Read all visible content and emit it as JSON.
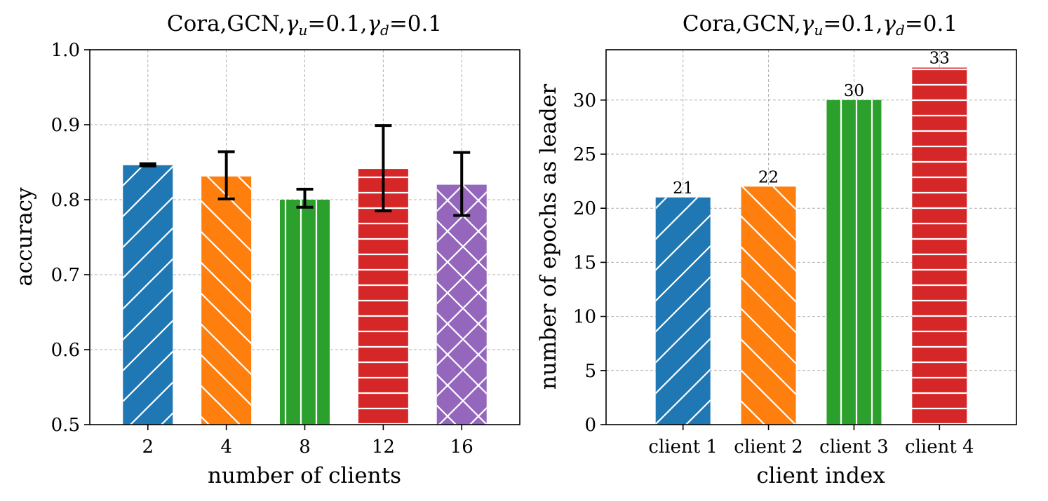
{
  "chart_data": [
    {
      "type": "bar",
      "title_text": "Cora,GCN,",
      "title_params": [
        "γ",
        "u",
        "=0.1,",
        "γ",
        "d",
        "=0.1"
      ],
      "title": "Cora,GCN,γu=0.1,γd=0.1",
      "xlabel": "number of clients",
      "ylabel": "accuracy",
      "categories": [
        "2",
        "4",
        "8",
        "12",
        "16"
      ],
      "values": [
        0.846,
        0.831,
        0.8,
        0.841,
        0.82
      ],
      "error_low": [
        0.845,
        0.801,
        0.79,
        0.785,
        0.779
      ],
      "error_high": [
        0.848,
        0.864,
        0.814,
        0.899,
        0.863
      ],
      "ylim": [
        0.5,
        1.0
      ],
      "yticks": [
        "0.5",
        "0.6",
        "0.7",
        "0.8",
        "0.9",
        "1.0"
      ],
      "grid": true,
      "colors": [
        "#1f77b4",
        "#ff7f0e",
        "#2ca02c",
        "#d62728",
        "#9467bd"
      ],
      "hatches": [
        "forward-diagonal",
        "back-diagonal",
        "vertical",
        "horizontal",
        "crosshatch"
      ]
    },
    {
      "type": "bar",
      "title_text": "Cora,GCN,",
      "title_params": [
        "γ",
        "u",
        "=0.1,",
        "γ",
        "d",
        "=0.1"
      ],
      "title": "Cora,GCN,γu=0.1,γd=0.1",
      "xlabel": "client index",
      "ylabel": "number of epochs as leader",
      "categories": [
        "client 1",
        "client 2",
        "client 3",
        "client 4"
      ],
      "values": [
        21,
        22,
        30,
        33
      ],
      "data_labels": [
        "21",
        "22",
        "30",
        "33"
      ],
      "ylim": [
        0,
        34.65
      ],
      "yticks": [
        "0",
        "5",
        "10",
        "15",
        "20",
        "25",
        "30"
      ],
      "grid": true,
      "colors": [
        "#1f77b4",
        "#ff7f0e",
        "#2ca02c",
        "#d62728"
      ],
      "hatches": [
        "forward-diagonal",
        "back-diagonal",
        "vertical",
        "horizontal"
      ]
    }
  ]
}
